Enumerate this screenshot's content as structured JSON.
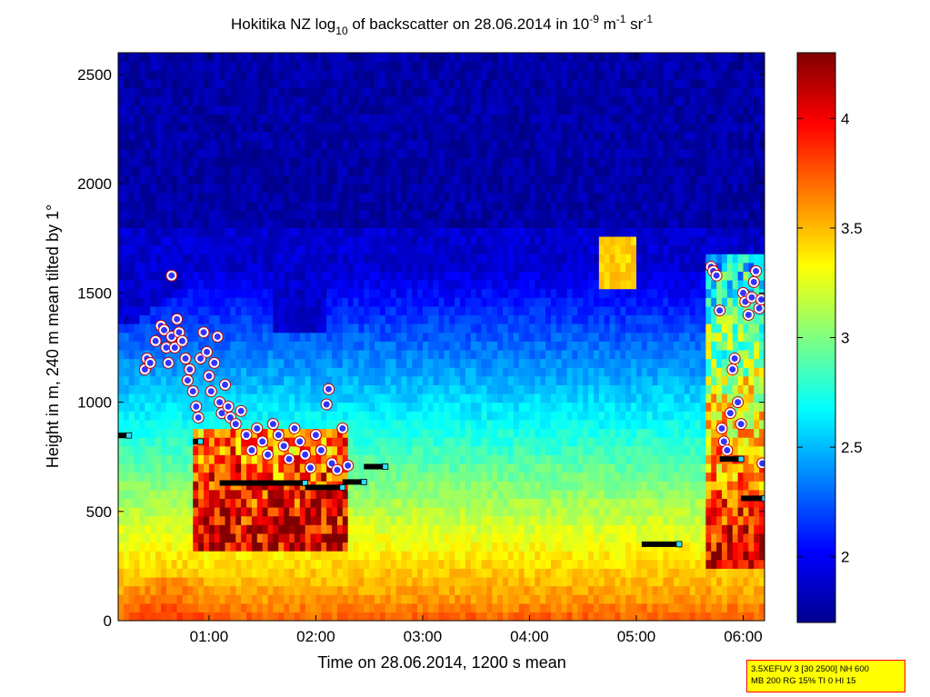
{
  "chart_data": {
    "type": "heatmap",
    "title": {
      "prefix": "Hokitika NZ log",
      "log_base": "10",
      "middle": " of backscatter on 28.06.2014 in 10",
      "exp1": "-9",
      "unit1": " m",
      "exp2": "-1",
      "unit2": " sr",
      "exp3": "-1"
    },
    "xlabel": "Time on 28.06.2014, 1200 s mean",
    "ylabel": "Height in m, 240 m mean tilted by 1°",
    "xlim_hours": [
      0.15,
      6.2
    ],
    "ylim": [
      0,
      2600
    ],
    "x_ticks": [
      {
        "value": 1,
        "label": "01:00"
      },
      {
        "value": 2,
        "label": "02:00"
      },
      {
        "value": 3,
        "label": "03:00"
      },
      {
        "value": 4,
        "label": "04:00"
      },
      {
        "value": 5,
        "label": "05:00"
      },
      {
        "value": 6,
        "label": "06:00"
      }
    ],
    "y_ticks": [
      0,
      500,
      1000,
      1500,
      2000,
      2500
    ],
    "colorbar": {
      "colormap": "jet",
      "range": [
        1.7,
        4.3
      ],
      "ticks": [
        "2",
        "2.5",
        "3",
        "3.5",
        "4"
      ],
      "tick_values": [
        2,
        2.5,
        3,
        3.5,
        4
      ]
    },
    "cloud_base_markers": [
      {
        "t0": 0.15,
        "t1": 0.25,
        "h": 848
      },
      {
        "t0": 0.85,
        "t1": 0.92,
        "h": 820
      },
      {
        "t0": 1.1,
        "t1": 1.9,
        "h": 630
      },
      {
        "t0": 1.9,
        "t1": 2.25,
        "h": 610
      },
      {
        "t0": 2.25,
        "t1": 2.45,
        "h": 635
      },
      {
        "t0": 2.45,
        "t1": 2.65,
        "h": 705
      },
      {
        "t0": 5.05,
        "t1": 5.4,
        "h": 350
      },
      {
        "t0": 5.78,
        "t1": 5.98,
        "h": 740
      },
      {
        "t0": 5.98,
        "t1": 6.2,
        "h": 560
      }
    ],
    "layer_points": [
      [
        0.4,
        1150
      ],
      [
        0.42,
        1200
      ],
      [
        0.45,
        1180
      ],
      [
        0.5,
        1280
      ],
      [
        0.55,
        1350
      ],
      [
        0.58,
        1330
      ],
      [
        0.6,
        1250
      ],
      [
        0.62,
        1180
      ],
      [
        0.65,
        1300
      ],
      [
        0.68,
        1250
      ],
      [
        0.7,
        1380
      ],
      [
        0.72,
        1320
      ],
      [
        0.75,
        1280
      ],
      [
        0.78,
        1200
      ],
      [
        0.8,
        1100
      ],
      [
        0.82,
        1150
      ],
      [
        0.85,
        1050
      ],
      [
        0.88,
        980
      ],
      [
        0.9,
        930
      ],
      [
        0.92,
        1200
      ],
      [
        0.95,
        1320
      ],
      [
        0.98,
        1230
      ],
      [
        1.0,
        1120
      ],
      [
        1.02,
        1050
      ],
      [
        1.05,
        1180
      ],
      [
        1.08,
        1300
      ],
      [
        1.1,
        1000
      ],
      [
        1.12,
        950
      ],
      [
        1.15,
        1080
      ],
      [
        1.18,
        980
      ],
      [
        1.2,
        930
      ],
      [
        1.25,
        900
      ],
      [
        1.3,
        960
      ],
      [
        1.35,
        850
      ],
      [
        1.4,
        780
      ],
      [
        1.45,
        880
      ],
      [
        1.5,
        820
      ],
      [
        1.55,
        760
      ],
      [
        1.6,
        900
      ],
      [
        1.65,
        850
      ],
      [
        1.7,
        800
      ],
      [
        1.75,
        740
      ],
      [
        1.8,
        880
      ],
      [
        1.85,
        820
      ],
      [
        1.9,
        760
      ],
      [
        1.95,
        700
      ],
      [
        2.0,
        850
      ],
      [
        2.05,
        780
      ],
      [
        2.1,
        990
      ],
      [
        2.12,
        1060
      ],
      [
        2.15,
        720
      ],
      [
        2.2,
        690
      ],
      [
        2.25,
        880
      ],
      [
        2.3,
        710
      ],
      [
        0.65,
        1580
      ],
      [
        5.7,
        1620
      ],
      [
        5.72,
        1600
      ],
      [
        5.75,
        1580
      ],
      [
        5.78,
        1420
      ],
      [
        5.8,
        880
      ],
      [
        5.82,
        820
      ],
      [
        5.85,
        780
      ],
      [
        5.88,
        950
      ],
      [
        5.9,
        1150
      ],
      [
        5.92,
        1200
      ],
      [
        5.95,
        1000
      ],
      [
        5.98,
        900
      ],
      [
        6.0,
        1500
      ],
      [
        6.02,
        1460
      ],
      [
        6.05,
        1400
      ],
      [
        6.08,
        1480
      ],
      [
        6.1,
        1550
      ],
      [
        6.12,
        1600
      ],
      [
        6.15,
        1430
      ],
      [
        6.17,
        1470
      ],
      [
        6.18,
        720
      ]
    ]
  },
  "annotation_box": {
    "line1": "3.5XEFUV 3 [30 2500] NH 600",
    "line2": "MB 200 RG 15% TI 0 HI 15"
  }
}
